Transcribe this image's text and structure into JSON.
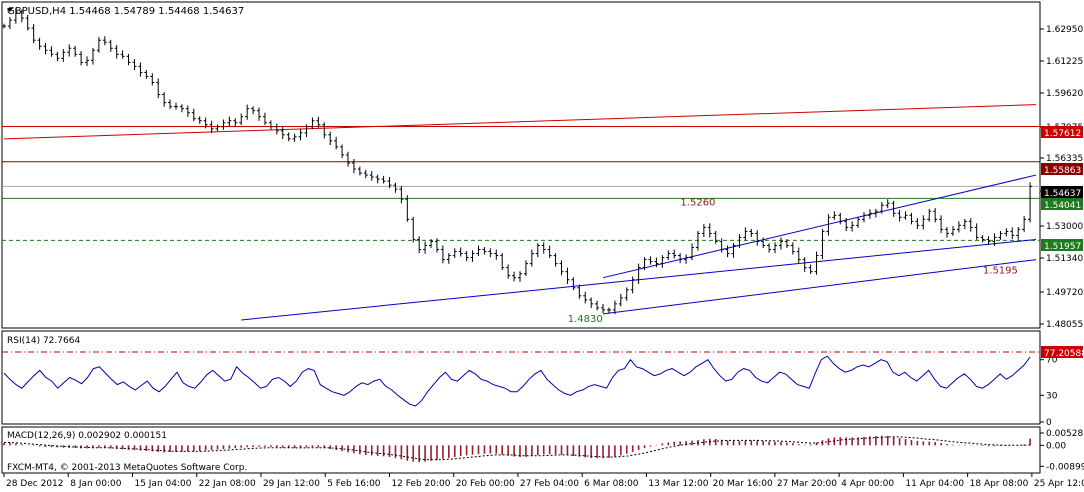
{
  "header": {
    "symbol_line": "GBPUSD,H4  1.54468 1.54789 1.54468 1.54637",
    "rsi_line": "RSI(14) 72.7664",
    "macd_line": "MACD(12,26,9) 0.002902 0.000151",
    "watermark": "FXCM-MT4, © 2001-2013 MetaQuotes Software Corp."
  },
  "chart_data": [
    {
      "type": "line",
      "title": "GBPUSD,H4",
      "ohlc_last": {
        "open": 1.54468,
        "high": 1.54789,
        "low": 1.54468,
        "close": 1.54637
      },
      "y_ticks": [
        "1.62950",
        "1.61225",
        "1.59620",
        "1.57975",
        "1.56335",
        "1.54690",
        "1.53000",
        "1.51340",
        "1.49720",
        "1.48055"
      ],
      "ylim": [
        1.477,
        1.637
      ],
      "x_ticks": [
        "28 Dec 2012",
        "8 Jan 00:00",
        "15 Jan 04:00",
        "22 Jan 08:00",
        "29 Jan 12:00",
        "5 Feb 16:00",
        "12 Feb 20:00",
        "20 Feb 00:00",
        "27 Feb 04:00",
        "6 Mar 08:00",
        "13 Mar 12:00",
        "20 Mar 16:00",
        "27 Mar 20:00",
        "4 Apr 00:00",
        "11 Apr 04:00",
        "18 Apr 08:00",
        "25 Apr 12:00"
      ],
      "x_range": [
        0,
        174
      ],
      "series": [
        {
          "name": "GBPUSD",
          "values": [
            1.626,
            1.629,
            1.633,
            1.63,
            1.625,
            1.619,
            1.616,
            1.614,
            1.612,
            1.61,
            1.613,
            1.615,
            1.612,
            1.608,
            1.609,
            1.614,
            1.619,
            1.618,
            1.615,
            1.612,
            1.611,
            1.608,
            1.606,
            1.603,
            1.601,
            1.598,
            1.592,
            1.588,
            1.586,
            1.586,
            1.585,
            1.583,
            1.58,
            1.579,
            1.577,
            1.575,
            1.576,
            1.578,
            1.579,
            1.578,
            1.581,
            1.585,
            1.584,
            1.581,
            1.578,
            1.576,
            1.574,
            1.572,
            1.57,
            1.571,
            1.573,
            1.576,
            1.579,
            1.577,
            1.572,
            1.569,
            1.566,
            1.562,
            1.558,
            1.555,
            1.553,
            1.552,
            1.551,
            1.55,
            1.549,
            1.547,
            1.545,
            1.54,
            1.53,
            1.52,
            1.515,
            1.517,
            1.519,
            1.515,
            1.51,
            1.512,
            1.514,
            1.513,
            1.511,
            1.513,
            1.515,
            1.514,
            1.513,
            1.512,
            1.506,
            1.502,
            1.501,
            1.503,
            1.508,
            1.513,
            1.517,
            1.515,
            1.512,
            1.508,
            1.504,
            1.5,
            1.496,
            1.492,
            1.49,
            1.488,
            1.486,
            1.485,
            1.485,
            1.488,
            1.491,
            1.495,
            1.5,
            1.506,
            1.51,
            1.509,
            1.508,
            1.511,
            1.513,
            1.512,
            1.51,
            1.511,
            1.516,
            1.523,
            1.526,
            1.523,
            1.519,
            1.515,
            1.513,
            1.517,
            1.521,
            1.524,
            1.523,
            1.519,
            1.517,
            1.515,
            1.517,
            1.519,
            1.517,
            1.514,
            1.51,
            1.506,
            1.504,
            1.512,
            1.524,
            1.531,
            1.532,
            1.529,
            1.526,
            1.527,
            1.53,
            1.532,
            1.533,
            1.534,
            1.537,
            1.538,
            1.533,
            1.531,
            1.532,
            1.529,
            1.527,
            1.53,
            1.534,
            1.53,
            1.525,
            1.523,
            1.525,
            1.527,
            1.529,
            1.526,
            1.521,
            1.52,
            1.519,
            1.521,
            1.523,
            1.524,
            1.522,
            1.525,
            1.53,
            1.5464
          ]
        }
      ],
      "price_labels": [
        {
          "text": "1.57612",
          "color": "#cc0000"
        },
        {
          "text": "1.55863",
          "color": "#8b0000"
        },
        {
          "text": "1.54637",
          "color": "#000000"
        },
        {
          "text": "1.54041",
          "color": "#1e7a1e"
        },
        {
          "text": "1.51957",
          "color": "#1e7a1e"
        }
      ],
      "horizontal_lines": [
        {
          "value": 1.57612,
          "color": "#cc0000",
          "style": "solid"
        },
        {
          "value": 1.55863,
          "color": "#8b0000",
          "style": "solid"
        },
        {
          "value": 1.54041,
          "color": "#1e7a1e",
          "style": "solid"
        },
        {
          "value": 1.51957,
          "color": "#1e7a1e",
          "style": "dashed"
        },
        {
          "value": 1.54637,
          "color": "#aaaaaa",
          "style": "solid"
        }
      ],
      "trend_lines": [
        {
          "color": "#cc0000",
          "from": [
            0,
            1.57
          ],
          "to": [
            174,
            1.587
          ]
        },
        {
          "color": "#0000cc",
          "from": [
            40,
            1.48
          ],
          "to": [
            174,
            1.52
          ]
        },
        {
          "color": "#0000cc",
          "from": [
            101,
            1.483
          ],
          "to": [
            174,
            1.51
          ]
        },
        {
          "color": "#0000cc",
          "from": [
            101,
            1.501
          ],
          "to": [
            174,
            1.552
          ]
        }
      ],
      "annotations": [
        {
          "text": "1.5260",
          "color": "#8b1a1a",
          "x": 117,
          "y": 1.537
        },
        {
          "text": "1.4830",
          "color": "#1e7a1e",
          "x": 98,
          "y": 1.479
        },
        {
          "text": "1.5195",
          "color": "#8b1a1a",
          "x": 168,
          "y": 1.503
        }
      ]
    },
    {
      "type": "line",
      "title": "RSI(14) 72.7664",
      "y_ticks": [
        "70",
        "30",
        "0"
      ],
      "ylim": [
        0,
        100
      ],
      "level_label": "77.20588",
      "level": 77.2,
      "series": [
        {
          "name": "RSI",
          "values": [
            55,
            48,
            42,
            38,
            45,
            52,
            58,
            50,
            46,
            38,
            44,
            50,
            47,
            43,
            50,
            60,
            62,
            55,
            48,
            42,
            45,
            40,
            36,
            41,
            46,
            38,
            34,
            40,
            48,
            56,
            44,
            40,
            38,
            45,
            53,
            58,
            52,
            46,
            48,
            62,
            55,
            50,
            44,
            38,
            40,
            48,
            50,
            46,
            40,
            46,
            56,
            60,
            58,
            42,
            38,
            34,
            32,
            30,
            34,
            40,
            44,
            42,
            46,
            48,
            40,
            36,
            30,
            25,
            20,
            18,
            24,
            34,
            42,
            50,
            56,
            48,
            46,
            52,
            58,
            54,
            48,
            46,
            42,
            40,
            38,
            34,
            34,
            40,
            48,
            54,
            58,
            48,
            42,
            36,
            32,
            30,
            34,
            36,
            40,
            42,
            40,
            38,
            50,
            58,
            60,
            70,
            62,
            60,
            56,
            52,
            54,
            58,
            60,
            56,
            52,
            56,
            62,
            66,
            70,
            60,
            52,
            46,
            48,
            56,
            60,
            58,
            50,
            46,
            44,
            50,
            56,
            54,
            48,
            42,
            40,
            38,
            55,
            70,
            74,
            66,
            60,
            56,
            58,
            62,
            64,
            62,
            66,
            70,
            68,
            56,
            52,
            56,
            50,
            46,
            52,
            58,
            48,
            40,
            38,
            44,
            50,
            54,
            48,
            40,
            38,
            42,
            48,
            54,
            48,
            52,
            58,
            64,
            73
          ]
        }
      ]
    },
    {
      "type": "bar",
      "title": "MACD(12,26,9) 0.002902 0.000151",
      "y_ticks": [
        "0.00528",
        "0.00",
        "-0.00899"
      ],
      "ylim": [
        -0.011,
        0.007
      ],
      "series": [
        {
          "name": "MACD",
          "values": [
            0.001,
            0.0012,
            0.0008,
            0.0004,
            0.0001,
            -0.0002,
            -0.0005,
            -0.0007,
            -0.0008,
            -0.0009,
            -0.001,
            -0.0011,
            -0.0012,
            -0.0013,
            -0.0013,
            -0.0012,
            -0.001,
            -0.0011,
            -0.0013,
            -0.0015,
            -0.0017,
            -0.0019,
            -0.0021,
            -0.0022,
            -0.0024,
            -0.0026,
            -0.0028,
            -0.003,
            -0.0029,
            -0.0028,
            -0.0027,
            -0.0026,
            -0.0025,
            -0.0024,
            -0.0022,
            -0.002,
            -0.0018,
            -0.0016,
            -0.0014,
            -0.0012,
            -0.001,
            -0.0008,
            -0.0007,
            -0.0006,
            -0.0006,
            -0.0007,
            -0.0008,
            -0.001,
            -0.0011,
            -0.0012,
            -0.0011,
            -0.0009,
            -0.0007,
            -0.0009,
            -0.0012,
            -0.0016,
            -0.002,
            -0.0025,
            -0.003,
            -0.0034,
            -0.0038,
            -0.0041,
            -0.0043,
            -0.0045,
            -0.0047,
            -0.005,
            -0.0055,
            -0.006,
            -0.0066,
            -0.007,
            -0.0072,
            -0.007,
            -0.0066,
            -0.0062,
            -0.0058,
            -0.0054,
            -0.005,
            -0.0046,
            -0.0043,
            -0.004,
            -0.0038,
            -0.0036,
            -0.0035,
            -0.0036,
            -0.004,
            -0.0044,
            -0.0048,
            -0.005,
            -0.0049,
            -0.0046,
            -0.0042,
            -0.0039,
            -0.0038,
            -0.0038,
            -0.004,
            -0.0043,
            -0.0046,
            -0.0049,
            -0.0052,
            -0.0054,
            -0.0055,
            -0.0055,
            -0.0053,
            -0.0049,
            -0.0043,
            -0.0036,
            -0.0028,
            -0.002,
            -0.0012,
            -0.0005,
            0.0002,
            0.0008,
            0.0012,
            0.0015,
            0.0017,
            0.0018,
            0.002,
            0.0023,
            0.0026,
            0.0028,
            0.0027,
            0.0024,
            0.0021,
            0.0019,
            0.0019,
            0.002,
            0.0021,
            0.002,
            0.0018,
            0.0016,
            0.0015,
            0.0014,
            0.0012,
            0.0009,
            0.0005,
            0.0002,
            0.0004,
            0.0012,
            0.0022,
            0.003,
            0.0034,
            0.0035,
            0.0034,
            0.0033,
            0.0034,
            0.0036,
            0.0038,
            0.004,
            0.0041,
            0.004,
            0.0036,
            0.0031,
            0.0027,
            0.0023,
            0.0019,
            0.0017,
            0.0016,
            0.0014,
            0.001,
            0.0006,
            0.0003,
            0.0002,
            0.0002,
            0.0001,
            -0.0001,
            -0.0003,
            -0.0004,
            -0.0004,
            -0.0003,
            -0.0002,
            -0.0001,
            0.0001,
            0.0004,
            0.0029
          ]
        },
        {
          "name": "Signal",
          "values": [
            0.0012,
            0.0012,
            0.0011,
            0.0009,
            0.0007,
            0.0005,
            0.0003,
            0.0001,
            -0.0001,
            -0.0003,
            -0.0004,
            -0.0006,
            -0.0007,
            -0.0008,
            -0.0009,
            -0.001,
            -0.001,
            -0.001,
            -0.0011,
            -0.0012,
            -0.0013,
            -0.0014,
            -0.0015,
            -0.0017,
            -0.0018,
            -0.002,
            -0.0022,
            -0.0023,
            -0.0025,
            -0.0026,
            -0.0026,
            -0.0026,
            -0.0026,
            -0.0026,
            -0.0025,
            -0.0024,
            -0.0023,
            -0.0021,
            -0.002,
            -0.0018,
            -0.0017,
            -0.0015,
            -0.0013,
            -0.0012,
            -0.0011,
            -0.001,
            -0.001,
            -0.001,
            -0.001,
            -0.0011,
            -0.0011,
            -0.0011,
            -0.001,
            -0.001,
            -0.001,
            -0.0011,
            -0.0013,
            -0.0015,
            -0.0018,
            -0.0021,
            -0.0024,
            -0.0028,
            -0.0031,
            -0.0034,
            -0.0036,
            -0.0039,
            -0.0042,
            -0.0046,
            -0.005,
            -0.0054,
            -0.0058,
            -0.0061,
            -0.0062,
            -0.0062,
            -0.0061,
            -0.006,
            -0.0058,
            -0.0055,
            -0.0053,
            -0.005,
            -0.0048,
            -0.0045,
            -0.0043,
            -0.0041,
            -0.0041,
            -0.0041,
            -0.0042,
            -0.0044,
            -0.0045,
            -0.0045,
            -0.0045,
            -0.0044,
            -0.0043,
            -0.0042,
            -0.0041,
            -0.0041,
            -0.0042,
            -0.0043,
            -0.0045,
            -0.0047,
            -0.0048,
            -0.005,
            -0.005,
            -0.005,
            -0.0048,
            -0.0046,
            -0.0042,
            -0.0038,
            -0.0033,
            -0.0027,
            -0.0021,
            -0.0015,
            -0.0009,
            -0.0004,
            0.0,
            0.0004,
            0.0007,
            0.001,
            0.0013,
            0.0016,
            0.0018,
            0.002,
            0.0021,
            0.0021,
            0.0021,
            0.0021,
            0.0021,
            0.0021,
            0.002,
            0.002,
            0.0019,
            0.0018,
            0.0017,
            0.0015,
            0.0013,
            0.0011,
            0.001,
            0.001,
            0.0012,
            0.0016,
            0.0019,
            0.0023,
            0.0025,
            0.0027,
            0.0028,
            0.003,
            0.0031,
            0.0033,
            0.0034,
            0.0036,
            0.0036,
            0.0036,
            0.0035,
            0.0033,
            0.0031,
            0.0028,
            0.0026,
            0.0024,
            0.0021,
            0.0018,
            0.0015,
            0.0013,
            0.0011,
            0.0009,
            0.0007,
            0.0005,
            0.0003,
            0.0002,
            0.0001,
            0.0,
            0.0,
            0.0,
            0.0,
            0.0002
          ]
        }
      ]
    }
  ]
}
